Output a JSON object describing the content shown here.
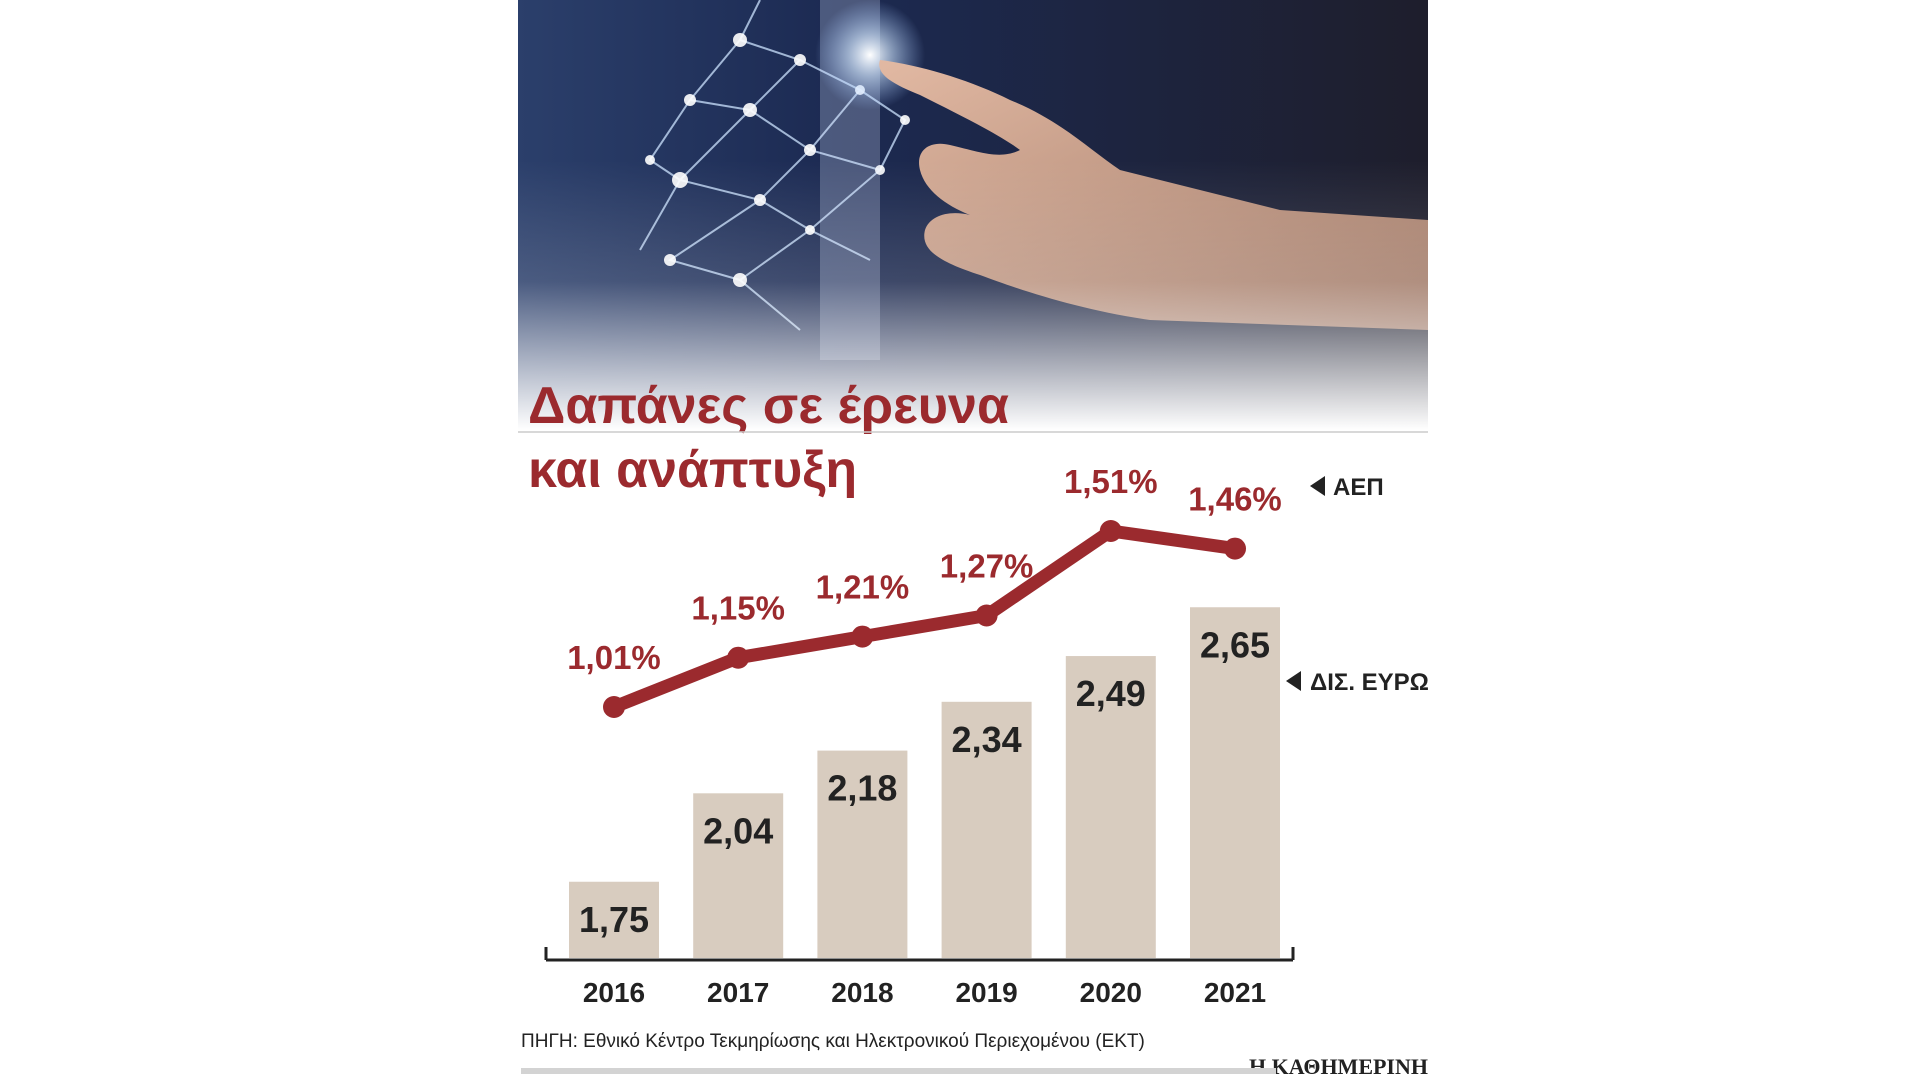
{
  "title_lines": [
    "Δαπάνες σε έρευνα",
    "και ανάπτυξη"
  ],
  "source": "ΠΗΓΗ: Εθνικό Κέντρο Τεκμηρίωσης και Ηλεκτρονικού Περιεχομένου (ΕΚΤ)",
  "brand": "Η ΚΑΘΗΜΕΡΙΝΗ",
  "header_image": "digital-network-hand-touch",
  "colors": {
    "line": "#9b2a2e",
    "bar": "#d8ccbf",
    "text": "#222222"
  },
  "chart_data": {
    "type": "bar",
    "categories": [
      "2016",
      "2017",
      "2018",
      "2019",
      "2020",
      "2021"
    ],
    "series": [
      {
        "name": "ΔΙΣ. ΕΥΡΩ",
        "type": "bar",
        "values": [
          1.75,
          2.04,
          2.18,
          2.34,
          2.49,
          2.65
        ],
        "labels": [
          "1,75",
          "2,04",
          "2,18",
          "2,34",
          "2,49",
          "2,65"
        ]
      },
      {
        "name": "ΑΕΠ",
        "type": "line",
        "values": [
          1.01,
          1.15,
          1.21,
          1.27,
          1.51,
          1.46
        ],
        "labels": [
          "1,01%",
          "1,15%",
          "1,21%",
          "1,27%",
          "1,51%",
          "1,46%"
        ]
      }
    ],
    "legend_position": "right",
    "grid": false
  }
}
